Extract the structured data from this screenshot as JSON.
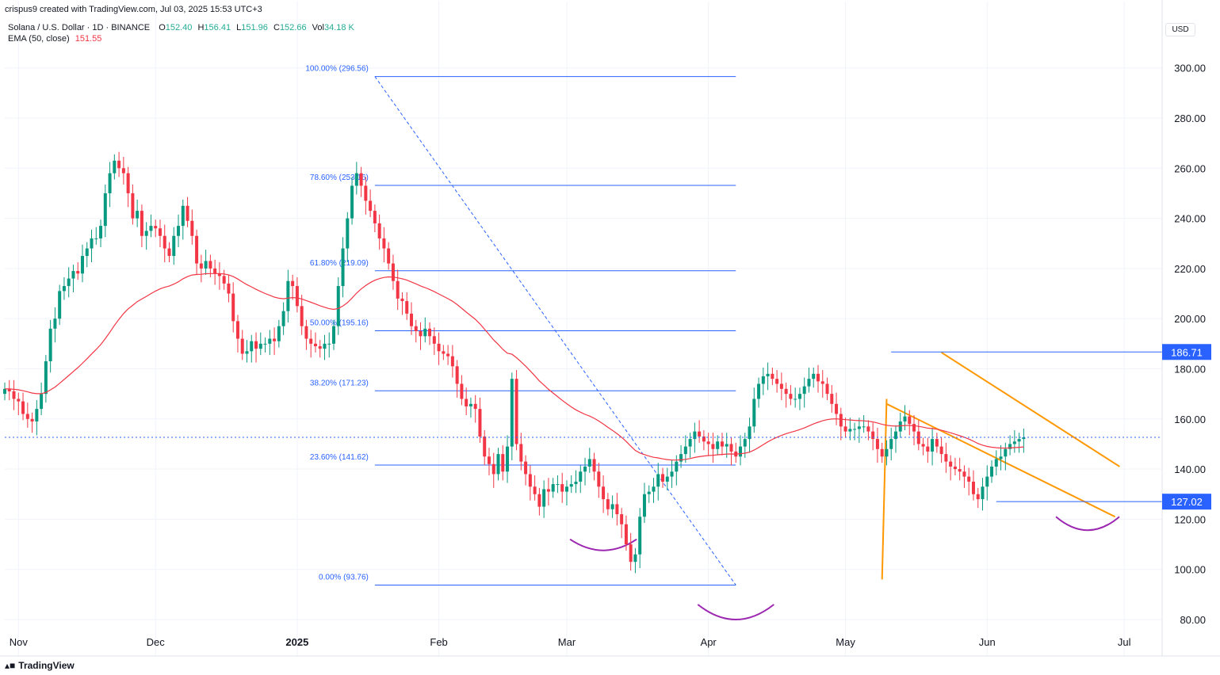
{
  "header": {
    "created_by": "crispus9 created with TradingView.com, Jul 03, 2025 15:53 UTC+3",
    "symbol_line": "Solana / U.S. Dollar · 1D · BINANCE",
    "o_label": "O",
    "o_value": "152.40",
    "h_label": "H",
    "h_value": "156.41",
    "l_label": "L",
    "l_value": "151.96",
    "c_label": "C",
    "c_value": "152.66",
    "vol_label": "Vol",
    "vol_value": "34.18 K",
    "ema_label": "EMA (50, close)",
    "ema_value": "151.55"
  },
  "currency_label": "USD",
  "footer": {
    "brand": "TradingView"
  },
  "colors": {
    "up": "#089981",
    "down": "#f23645",
    "ema": "#f23645",
    "fib": "#2962ff",
    "wedge": "#ff9800",
    "arc": "#9c27b0",
    "grid": "#f0f3fa"
  },
  "chart_data": {
    "type": "candlestick",
    "title": "Solana / U.S. Dollar · 1D · BINANCE",
    "y_axis": {
      "ticks": [
        80,
        100,
        120,
        140,
        160,
        180,
        200,
        220,
        240,
        260,
        280,
        300
      ],
      "range": [
        75,
        305
      ]
    },
    "x_axis": {
      "ticks": [
        "Nov",
        "Dec",
        "2025",
        "Feb",
        "Mar",
        "Apr",
        "May",
        "Jun",
        "Jul"
      ],
      "tick_dates": [
        "2024-11-01",
        "2024-12-01",
        "2025-01-01",
        "2025-02-01",
        "2025-03-01",
        "2025-04-01",
        "2025-05-01",
        "2025-06-01",
        "2025-07-01"
      ]
    },
    "last_price": 152.66,
    "price_markers": [
      186.71,
      127.02
    ],
    "fibonacci": [
      {
        "label": "100.00% (296.56)",
        "value": 296.56
      },
      {
        "label": "78.60% (253.16)",
        "value": 253.16
      },
      {
        "label": "61.80% (219.09)",
        "value": 219.09
      },
      {
        "label": "50.00% (195.16)",
        "value": 195.16
      },
      {
        "label": "38.20% (171.23)",
        "value": 171.23
      },
      {
        "label": "23.60% (141.62)",
        "value": 141.62
      },
      {
        "label": "0.00% (93.76)",
        "value": 93.76
      }
    ],
    "close_series": {
      "start_date": "2024-10-29",
      "interval": "1D",
      "values": [
        172,
        171,
        168,
        167,
        162,
        160,
        159,
        164,
        170,
        183,
        196,
        200,
        211,
        213,
        216,
        219,
        218,
        225,
        228,
        232,
        232,
        237,
        250,
        258,
        263,
        260,
        258,
        250,
        240,
        243,
        233,
        235,
        237,
        236,
        233,
        228,
        225,
        233,
        237,
        245,
        239,
        233,
        222,
        220,
        223,
        220,
        218,
        217,
        214,
        210,
        199,
        192,
        186,
        187,
        191,
        188,
        190,
        190,
        192,
        191,
        197,
        203,
        215,
        213,
        205,
        197,
        192,
        190,
        189,
        188,
        190,
        190,
        197,
        213,
        228,
        240,
        253,
        258,
        253,
        247,
        243,
        238,
        232,
        228,
        222,
        215,
        208,
        207,
        202,
        197,
        195,
        193,
        196,
        193,
        190,
        187,
        186,
        185,
        181,
        174,
        168,
        165,
        166,
        164,
        153,
        145,
        142,
        138,
        146,
        139,
        149,
        176,
        150,
        143,
        138,
        133,
        130,
        125,
        132,
        131,
        134,
        134,
        131,
        133,
        134,
        135,
        139,
        141,
        144,
        139,
        133,
        128,
        124,
        126,
        122,
        118,
        110,
        103,
        106,
        121,
        130,
        131,
        133,
        138,
        135,
        137,
        139,
        143,
        146,
        149,
        152,
        155,
        153,
        151,
        150,
        148,
        151,
        149,
        150,
        147,
        145,
        149,
        152,
        157,
        168,
        174,
        177,
        178,
        176,
        174,
        172,
        170,
        168,
        168,
        170,
        173,
        176,
        178,
        175,
        174,
        170,
        166,
        162,
        157,
        155,
        156,
        156,
        157,
        157,
        155,
        152,
        148,
        145,
        148,
        152,
        155,
        159,
        161,
        158,
        155,
        150,
        149,
        147,
        152,
        149,
        146,
        143,
        141,
        140,
        139,
        137,
        135,
        130,
        128,
        133,
        137,
        141,
        144,
        145,
        148,
        150,
        151,
        152,
        152.66
      ]
    },
    "ema50_close": 151.55,
    "annotations": [
      "falling wedge",
      "rounded bottoms"
    ]
  }
}
